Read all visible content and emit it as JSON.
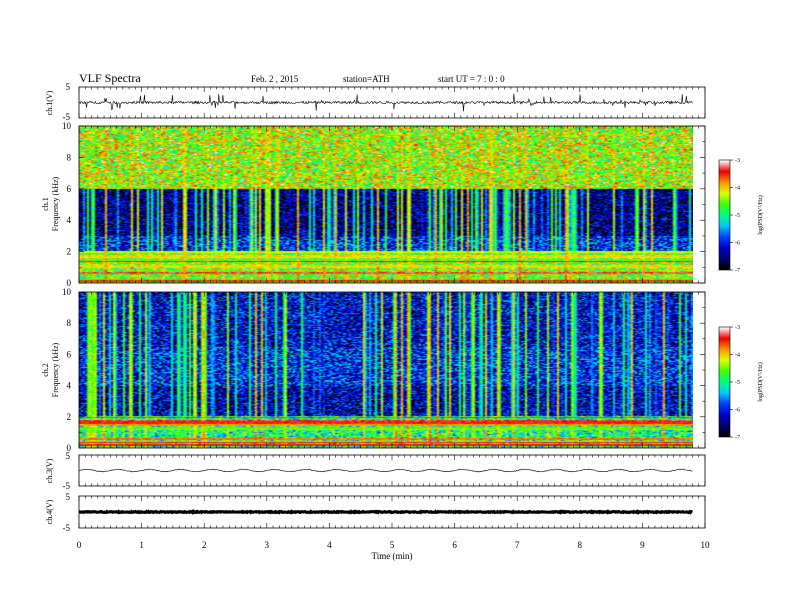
{
  "header": {
    "title": "VLF  Spectra",
    "date": "Feb. 2  , 2015",
    "station": "station=ATH",
    "start": "start  UT  =   7 : 0  : 0"
  },
  "colors": {
    "waveform": "#000000",
    "colormap": [
      "#000000",
      "#000070",
      "#0000c8",
      "#0040ff",
      "#00c8ff",
      "#00ff80",
      "#40ff00",
      "#e0ff00",
      "#ff9000",
      "#e80000",
      "#ffffff"
    ]
  },
  "chart_data": [
    {
      "type": "line",
      "panel": "ch1-waveform",
      "ylabel": "ch.1(V)",
      "ylim": [
        -5,
        5
      ],
      "yticks": [
        "5",
        "-5"
      ],
      "x_unit": "min",
      "xlim": [
        0,
        10
      ],
      "data_end_x": 9.8,
      "series": [
        {
          "values_summary": {
            "baseline": 0.0,
            "typical_amplitude": 0.4,
            "max_spike": 3.0
          }
        }
      ]
    },
    {
      "type": "heatmap",
      "panel": "ch1-spectrogram",
      "ylabel": "Frequency  (kHz)",
      "channel_label": "ch.1",
      "ylim": [
        0,
        10
      ],
      "yticks": [
        "0",
        "2",
        "4",
        "6",
        "8",
        "10"
      ],
      "xlim": [
        0,
        10
      ],
      "data_end_x": 9.8,
      "colorbar": {
        "label": "log(PSD(V²/Hz)",
        "range": [
          -7,
          -3
        ],
        "ticks": [
          "-3",
          "-4",
          "-5",
          "-6",
          "-7"
        ]
      },
      "bands": [
        {
          "freq_range_khz": [
            6.0,
            10.0
          ],
          "logpsd": -4.4
        },
        {
          "freq_range_khz": [
            3.0,
            6.0
          ],
          "logpsd": -6.5
        },
        {
          "freq_range_khz": [
            2.0,
            3.0
          ],
          "logpsd": -6.0
        },
        {
          "freq_range_khz": [
            0.0,
            2.0
          ],
          "logpsd": -4.5
        }
      ],
      "transients_count": 150
    },
    {
      "type": "heatmap",
      "panel": "ch2-spectrogram",
      "ylabel": "Frequency  (kHz)",
      "channel_label": "ch.2",
      "ylim": [
        0,
        10
      ],
      "yticks": [
        "0",
        "2",
        "4",
        "6",
        "8",
        "10"
      ],
      "xlim": [
        0,
        10
      ],
      "data_end_x": 9.8,
      "colorbar": {
        "label": "log(PSD(V²/Hz)",
        "range": [
          -7,
          -3
        ],
        "ticks": [
          "-3",
          "-4",
          "-5",
          "-6",
          "-7"
        ]
      },
      "bands": [
        {
          "freq_range_khz": [
            6.5,
            10.0
          ],
          "logpsd": -6.2
        },
        {
          "freq_range_khz": [
            4.0,
            6.5
          ],
          "logpsd": -6.0
        },
        {
          "freq_range_khz": [
            2.0,
            4.0
          ],
          "logpsd": -6.3
        },
        {
          "freq_range_khz": [
            0.0,
            2.0
          ],
          "logpsd": -5.0
        }
      ],
      "transients_count": 140
    },
    {
      "type": "line",
      "panel": "ch3-waveform",
      "ylabel": "ch.3(V)",
      "ylim": [
        -5,
        5
      ],
      "yticks": [
        "5",
        "-5"
      ],
      "xlim": [
        0,
        10
      ],
      "data_end_x": 9.8,
      "series": [
        {
          "values_summary": {
            "baseline": 0.0,
            "oscillation_amplitude": 0.35,
            "oscillation_period_min": 0.5
          }
        }
      ]
    },
    {
      "type": "line",
      "panel": "ch4-waveform",
      "ylabel": "ch.4(V)",
      "ylim": [
        -5,
        5
      ],
      "yticks": [
        "5",
        "-5"
      ],
      "xlim": [
        0,
        10
      ],
      "data_end_x": 9.8,
      "series": [
        {
          "values_summary": {
            "baseline": 0.0,
            "noise_amplitude": 0.15
          }
        }
      ]
    }
  ],
  "xaxis": {
    "label": "Time  (min)",
    "ticks": [
      "0",
      "1",
      "2",
      "3",
      "4",
      "5",
      "6",
      "7",
      "8",
      "9",
      "10"
    ]
  }
}
